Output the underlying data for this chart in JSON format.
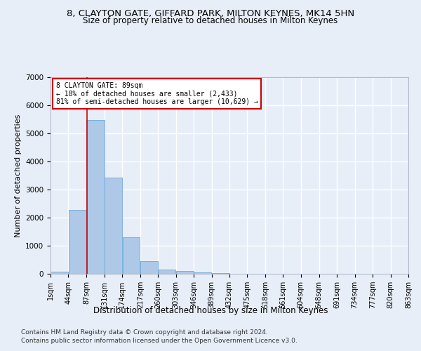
{
  "title1": "8, CLAYTON GATE, GIFFARD PARK, MILTON KEYNES, MK14 5HN",
  "title2": "Size of property relative to detached houses in Milton Keynes",
  "xlabel": "Distribution of detached houses by size in Milton Keynes",
  "ylabel": "Number of detached properties",
  "footer1": "Contains HM Land Registry data © Crown copyright and database right 2024.",
  "footer2": "Contains public sector information licensed under the Open Government Licence v3.0.",
  "annotation_title": "8 CLAYTON GATE: 89sqm",
  "annotation_line1": "← 18% of detached houses are smaller (2,433)",
  "annotation_line2": "81% of semi-detached houses are larger (10,629) →",
  "property_size": 89,
  "bar_color": "#aec8e8",
  "bar_edge_color": "#5a9fd4",
  "vline_color": "#cc0000",
  "annotation_box_color": "#ffffff",
  "annotation_box_edge": "#cc0000",
  "background_color": "#e8eef8",
  "plot_bg_color": "#e8eef8",
  "grid_color": "#ffffff",
  "bins": [
    1,
    44,
    87,
    131,
    174,
    217,
    260,
    303,
    346,
    389,
    432,
    475,
    518,
    561,
    604,
    648,
    691,
    734,
    777,
    820,
    863
  ],
  "bar_heights": [
    80,
    2280,
    5480,
    3430,
    1310,
    460,
    160,
    90,
    60,
    30,
    10,
    0,
    0,
    0,
    0,
    0,
    0,
    0,
    0,
    0
  ],
  "ylim": [
    0,
    7000
  ],
  "yticks": [
    0,
    1000,
    2000,
    3000,
    4000,
    5000,
    6000,
    7000
  ],
  "title1_fontsize": 9.5,
  "title2_fontsize": 8.5,
  "axis_label_fontsize": 8,
  "tick_fontsize": 7.5,
  "footer_fontsize": 6.5
}
